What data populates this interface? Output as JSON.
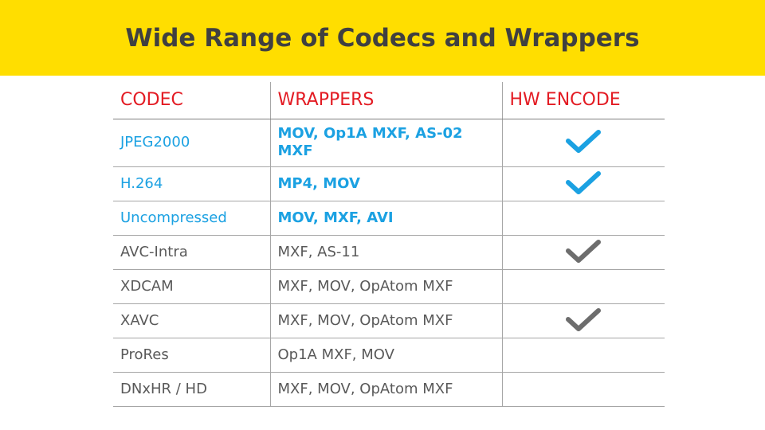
{
  "slide": {
    "title": "Wide Range of Codecs and Wrappers"
  },
  "table": {
    "headers": {
      "codec": "CODEC",
      "wrappers": "WRAPPERS",
      "hw_encode": "HW ENCODE"
    },
    "rows": [
      {
        "codec": "JPEG2000",
        "wrappers": "MOV, Op1A MXF, AS-02 MXF",
        "hw_encode": true,
        "highlight": true
      },
      {
        "codec": "H.264",
        "wrappers": "MP4, MOV",
        "hw_encode": true,
        "highlight": true
      },
      {
        "codec": "Uncompressed",
        "wrappers": "MOV, MXF, AVI",
        "hw_encode": false,
        "highlight": true
      },
      {
        "codec": "AVC-Intra",
        "wrappers": "MXF, AS-11",
        "hw_encode": true,
        "highlight": false
      },
      {
        "codec": "XDCAM",
        "wrappers": "MXF, MOV, OpAtom MXF",
        "hw_encode": false,
        "highlight": false
      },
      {
        "codec": "XAVC",
        "wrappers": "MXF, MOV, OpAtom MXF",
        "hw_encode": true,
        "highlight": false
      },
      {
        "codec": "ProRes",
        "wrappers": "Op1A MXF, MOV",
        "hw_encode": false,
        "highlight": false
      },
      {
        "codec": "DNxHR / HD",
        "wrappers": "MXF, MOV, OpAtom MXF",
        "hw_encode": false,
        "highlight": false
      }
    ]
  },
  "colors": {
    "banner": "#FFDE00",
    "title": "#404040",
    "header": "#E31B23",
    "highlight": "#1BA1E2",
    "normal": "#595959",
    "check_highlight": "#1BA1E2",
    "check_normal": "#6d6d6d"
  },
  "icons": {
    "check": "check-icon"
  }
}
